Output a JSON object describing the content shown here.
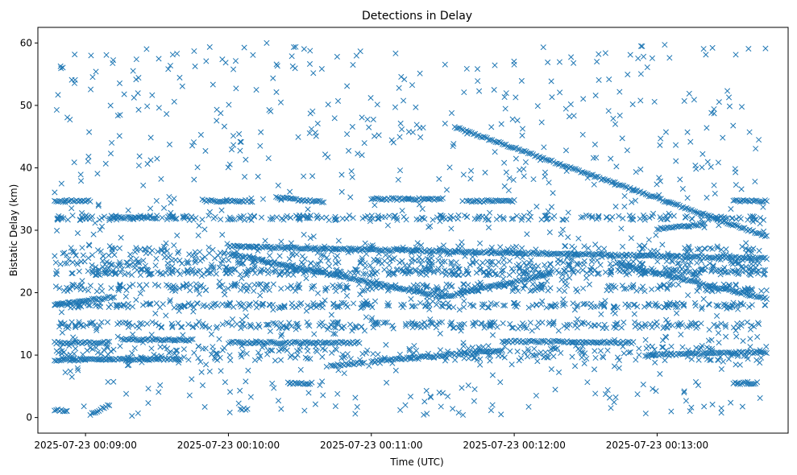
{
  "chart_data": {
    "type": "scatter",
    "title": "Detections in Delay",
    "xlabel": "Time (UTC)",
    "ylabel": "Bistatic Delay (km)",
    "x_ticks": [
      "2025-07-23 00:09:00",
      "2025-07-23 00:10:00",
      "2025-07-23 00:11:00",
      "2025-07-23 00:12:00",
      "2025-07-23 00:13:00"
    ],
    "y_ticks": [
      0,
      10,
      20,
      30,
      40,
      50,
      60
    ],
    "xlim": [
      "2025-07-23 00:08:40",
      "2025-07-23 00:13:55"
    ],
    "ylim": [
      -2.5,
      62.5
    ],
    "marker": "x",
    "color": "#1f77b4",
    "grid": false,
    "legend": "none",
    "tracks": [
      {
        "x0": "2025-07-23 00:11:35",
        "y0": 46.5,
        "x1": "2025-07-23 00:13:46",
        "y1": 29.0
      },
      {
        "x0": "2025-07-23 00:08:47",
        "y0": 18.1,
        "x1": "2025-07-23 00:09:12",
        "y1": 19.3
      },
      {
        "x0": "2025-07-23 00:10:00",
        "y0": 27.4,
        "x1": "2025-07-23 00:13:46",
        "y1": 25.5
      },
      {
        "x0": "2025-07-23 00:10:00",
        "y0": 26.2,
        "x1": "2025-07-23 00:11:30",
        "y1": 19.3
      },
      {
        "x0": "2025-07-23 00:11:30",
        "y0": 19.3,
        "x1": "2025-07-23 00:12:15",
        "y1": 23.0
      },
      {
        "x0": "2025-07-23 00:12:45",
        "y0": 24.5,
        "x1": "2025-07-23 00:13:46",
        "y1": 19.0
      },
      {
        "x0": "2025-07-23 00:08:47",
        "y0": 34.7,
        "x1": "2025-07-23 00:09:02",
        "y1": 34.7
      },
      {
        "x0": "2025-07-23 00:09:10",
        "y0": 32.0,
        "x1": "2025-07-23 00:09:30",
        "y1": 32.0
      },
      {
        "x0": "2025-07-23 00:09:50",
        "y0": 34.7,
        "x1": "2025-07-23 00:10:10",
        "y1": 34.7
      },
      {
        "x0": "2025-07-23 00:10:20",
        "y0": 35.2,
        "x1": "2025-07-23 00:10:40",
        "y1": 34.5
      },
      {
        "x0": "2025-07-23 00:11:00",
        "y0": 35.0,
        "x1": "2025-07-23 00:11:30",
        "y1": 35.0
      },
      {
        "x0": "2025-07-23 00:11:40",
        "y0": 34.7,
        "x1": "2025-07-23 00:12:00",
        "y1": 34.7
      },
      {
        "x0": "2025-07-23 00:13:00",
        "y0": 30.2,
        "x1": "2025-07-23 00:13:20",
        "y1": 31.0
      },
      {
        "x0": "2025-07-23 00:13:32",
        "y0": 34.7,
        "x1": "2025-07-23 00:13:46",
        "y1": 34.7
      },
      {
        "x0": "2025-07-23 00:08:47",
        "y0": 12.0,
        "x1": "2025-07-23 00:09:10",
        "y1": 12.0
      },
      {
        "x0": "2025-07-23 00:09:15",
        "y0": 12.5,
        "x1": "2025-07-23 00:09:45",
        "y1": 12.4
      },
      {
        "x0": "2025-07-23 00:10:00",
        "y0": 12.0,
        "x1": "2025-07-23 00:10:55",
        "y1": 12.0
      },
      {
        "x0": "2025-07-23 00:11:00",
        "y0": 9.0,
        "x1": "2025-07-23 00:11:55",
        "y1": 10.8
      },
      {
        "x0": "2025-07-23 00:11:55",
        "y0": 12.2,
        "x1": "2025-07-23 00:12:50",
        "y1": 12.0
      },
      {
        "x0": "2025-07-23 00:12:55",
        "y0": 10.0,
        "x1": "2025-07-23 00:13:46",
        "y1": 10.5
      },
      {
        "x0": "2025-07-23 00:08:47",
        "y0": 9.2,
        "x1": "2025-07-23 00:09:40",
        "y1": 9.4
      },
      {
        "x0": "2025-07-23 00:08:47",
        "y0": 1.2,
        "x1": "2025-07-23 00:08:52",
        "y1": 1.0
      },
      {
        "x0": "2025-07-23 00:09:02",
        "y0": 0.5,
        "x1": "2025-07-23 00:09:10",
        "y1": 2.0
      },
      {
        "x0": "2025-07-23 00:10:05",
        "y0": 1.5,
        "x1": "2025-07-23 00:10:08",
        "y1": 1.2
      },
      {
        "x0": "2025-07-23 00:10:25",
        "y0": 5.5,
        "x1": "2025-07-23 00:10:35",
        "y1": 5.5
      },
      {
        "x0": "2025-07-23 00:10:43",
        "y0": 8.3,
        "x1": "2025-07-23 00:10:57",
        "y1": 8.8
      },
      {
        "x0": "2025-07-23 00:13:32",
        "y0": 5.5,
        "x1": "2025-07-23 00:13:42",
        "y1": 5.5
      }
    ],
    "bands": [
      {
        "y": 26.0,
        "spread": 1.6
      },
      {
        "y": 24.0,
        "spread": 1.2
      },
      {
        "y": 20.8,
        "spread": 0.6
      },
      {
        "y": 23.3,
        "spread": 0.5
      },
      {
        "y": 10.3,
        "spread": 1.2
      },
      {
        "y": 18.0,
        "spread": 0.4
      },
      {
        "y": 14.8,
        "spread": 0.5
      },
      {
        "y": 32.0,
        "spread": 0.4
      }
    ]
  }
}
